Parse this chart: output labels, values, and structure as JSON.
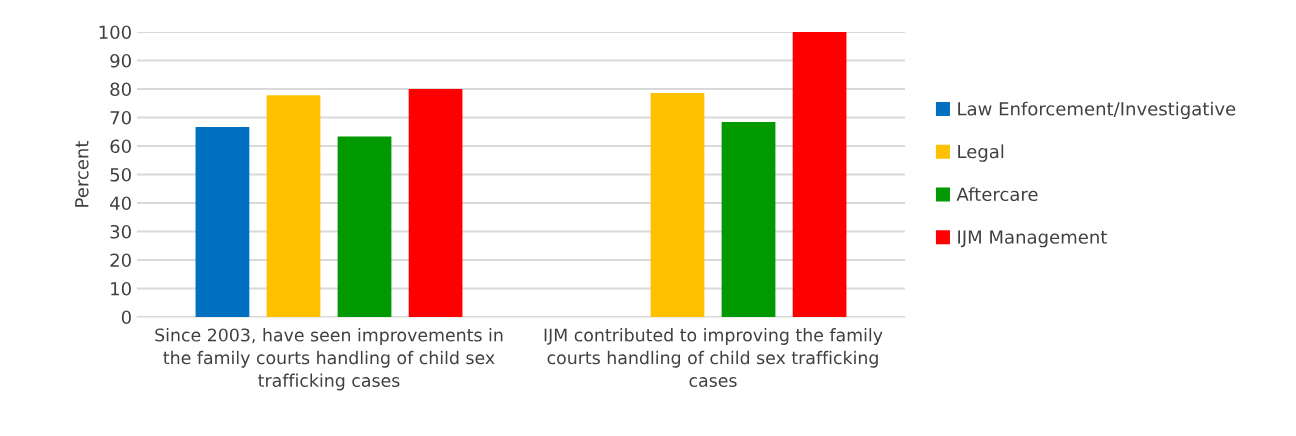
{
  "chart_data": {
    "type": "bar",
    "ylabel": "Percent",
    "categories": [
      "Since 2003, have seen improvements in the family courts handling of child sex trafficking cases",
      "IJM contributed to improving the family courts handling of child sex trafficking cases"
    ],
    "series": [
      {
        "name": "Law Enforcement/Investigative",
        "color": "#0070c0",
        "values": [
          66.7,
          null
        ]
      },
      {
        "name": "Legal",
        "color": "#ffc000",
        "values": [
          77.8,
          78.6
        ]
      },
      {
        "name": "Aftercare",
        "color": "#009900",
        "values": [
          63.3,
          68.4
        ]
      },
      {
        "name": "IJM Management",
        "color": "#ff0000",
        "values": [
          80,
          100
        ]
      }
    ],
    "ylim": [
      0,
      100
    ],
    "yticks": [
      0,
      10,
      20,
      30,
      40,
      50,
      60,
      70,
      80,
      90,
      100
    ],
    "grid": "y",
    "legend": "right"
  }
}
